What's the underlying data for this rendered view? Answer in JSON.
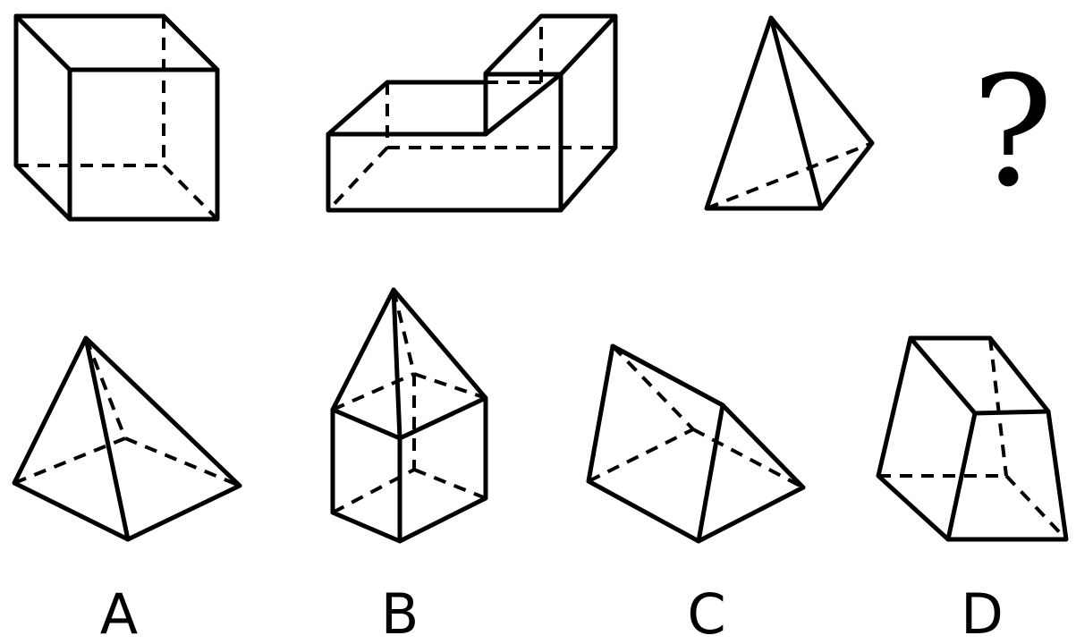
{
  "question": {
    "figures": [
      {
        "id": "figure-1",
        "shape": "cube"
      },
      {
        "id": "figure-2",
        "shape": "l-shaped-prism"
      },
      {
        "id": "figure-3",
        "shape": "square-pyramid"
      }
    ],
    "unknown_mark": "?"
  },
  "options": [
    {
      "label": "A",
      "shape": "square-pyramid"
    },
    {
      "label": "B",
      "shape": "cube-with-pyramid"
    },
    {
      "label": "C",
      "shape": "triangular-prism"
    },
    {
      "label": "D",
      "shape": "frustum"
    }
  ]
}
